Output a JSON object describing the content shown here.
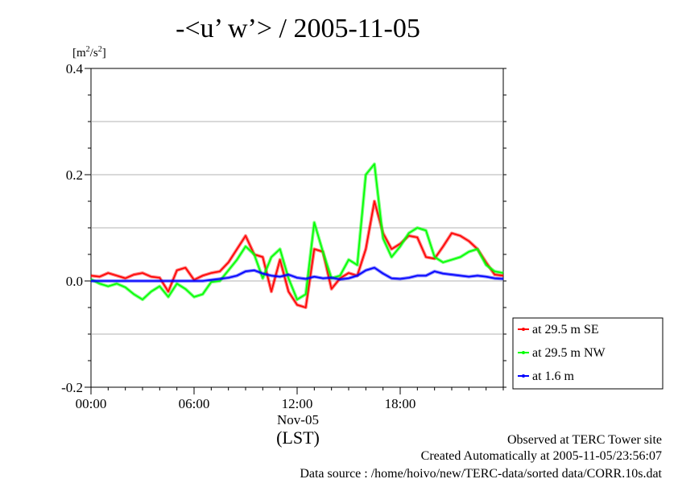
{
  "chart_data": {
    "type": "line",
    "title": "-<u’ w’> / 2005-11-05",
    "ylabel": "[m²/s²]",
    "ylabel_base": "[m",
    "ylabel_sup1": "2",
    "ylabel_mid": "/s",
    "ylabel_sup2": "2",
    "ylabel_end": "]",
    "ylim": [
      -0.2,
      0.4
    ],
    "yticks": [
      "0.4",
      "0.2",
      "0.0",
      "-0.2"
    ],
    "ytick_values": [
      0.4,
      0.2,
      0.0,
      -0.2
    ],
    "xlim": [
      0,
      24
    ],
    "xticks": [
      "00:00",
      "06:00",
      "12:00",
      "18:00"
    ],
    "xtick_values": [
      0,
      6,
      12,
      18
    ],
    "xlabel_date": "Nov-05",
    "xlabel_tz": "(LST)",
    "grid": true,
    "legend_position": "right",
    "x": [
      0.0,
      0.5,
      1.0,
      1.5,
      2.0,
      2.5,
      3.0,
      3.5,
      4.0,
      4.5,
      5.0,
      5.5,
      6.0,
      6.5,
      7.0,
      7.5,
      8.0,
      8.5,
      9.0,
      9.5,
      10.0,
      10.5,
      11.0,
      11.5,
      12.0,
      12.5,
      13.0,
      13.5,
      14.0,
      14.5,
      15.0,
      15.5,
      16.0,
      16.5,
      17.0,
      17.5,
      18.0,
      18.5,
      19.0,
      19.5,
      20.0,
      20.5,
      21.0,
      21.5,
      22.0,
      22.5,
      23.0,
      23.5,
      24.0
    ],
    "series": [
      {
        "name": "at 29.5 m SE",
        "color": "#ff0000",
        "values": [
          0.01,
          0.008,
          0.015,
          0.01,
          0.005,
          0.012,
          0.015,
          0.008,
          0.006,
          -0.02,
          0.02,
          0.025,
          0.002,
          0.01,
          0.015,
          0.018,
          0.035,
          0.06,
          0.085,
          0.05,
          0.045,
          -0.02,
          0.04,
          -0.02,
          -0.045,
          -0.05,
          0.06,
          0.055,
          -0.015,
          0.005,
          0.015,
          0.01,
          0.06,
          0.15,
          0.09,
          0.06,
          0.07,
          0.085,
          0.082,
          0.045,
          0.042,
          0.065,
          0.09,
          0.085,
          0.075,
          0.06,
          0.035,
          0.012,
          0.01
        ]
      },
      {
        "name": "at 29.5 m NW",
        "color": "#00ff00",
        "values": [
          0.003,
          -0.005,
          -0.01,
          -0.005,
          -0.012,
          -0.025,
          -0.035,
          -0.02,
          -0.01,
          -0.03,
          -0.005,
          -0.015,
          -0.03,
          -0.025,
          -0.002,
          0.0,
          0.02,
          0.04,
          0.065,
          0.05,
          0.005,
          0.045,
          0.06,
          0.005,
          -0.035,
          -0.025,
          0.11,
          0.055,
          0.005,
          0.01,
          0.04,
          0.03,
          0.2,
          0.22,
          0.08,
          0.045,
          0.065,
          0.09,
          0.1,
          0.095,
          0.045,
          0.035,
          0.04,
          0.045,
          0.055,
          0.06,
          0.03,
          0.018,
          0.015
        ]
      },
      {
        "name": "at 1.6 m",
        "color": "#0000ff",
        "values": [
          0.0,
          0.0,
          0.0,
          0.0,
          0.0,
          0.0,
          0.0,
          0.0,
          0.0,
          0.0,
          0.0,
          0.0,
          0.0,
          0.0,
          0.002,
          0.004,
          0.006,
          0.01,
          0.018,
          0.02,
          0.014,
          0.01,
          0.008,
          0.012,
          0.006,
          0.004,
          0.008,
          0.005,
          0.006,
          0.003,
          0.005,
          0.01,
          0.02,
          0.025,
          0.014,
          0.005,
          0.004,
          0.006,
          0.01,
          0.01,
          0.018,
          0.014,
          0.012,
          0.01,
          0.008,
          0.01,
          0.008,
          0.005,
          0.004
        ]
      }
    ]
  },
  "footer": {
    "line1": "Observed at TERC Tower site",
    "line2": "Created Automatically at 2005-11-05/23:56:07",
    "line3": "Data source : /home/hoivo/new/TERC-data/sorted  data/CORR.10s.dat"
  }
}
